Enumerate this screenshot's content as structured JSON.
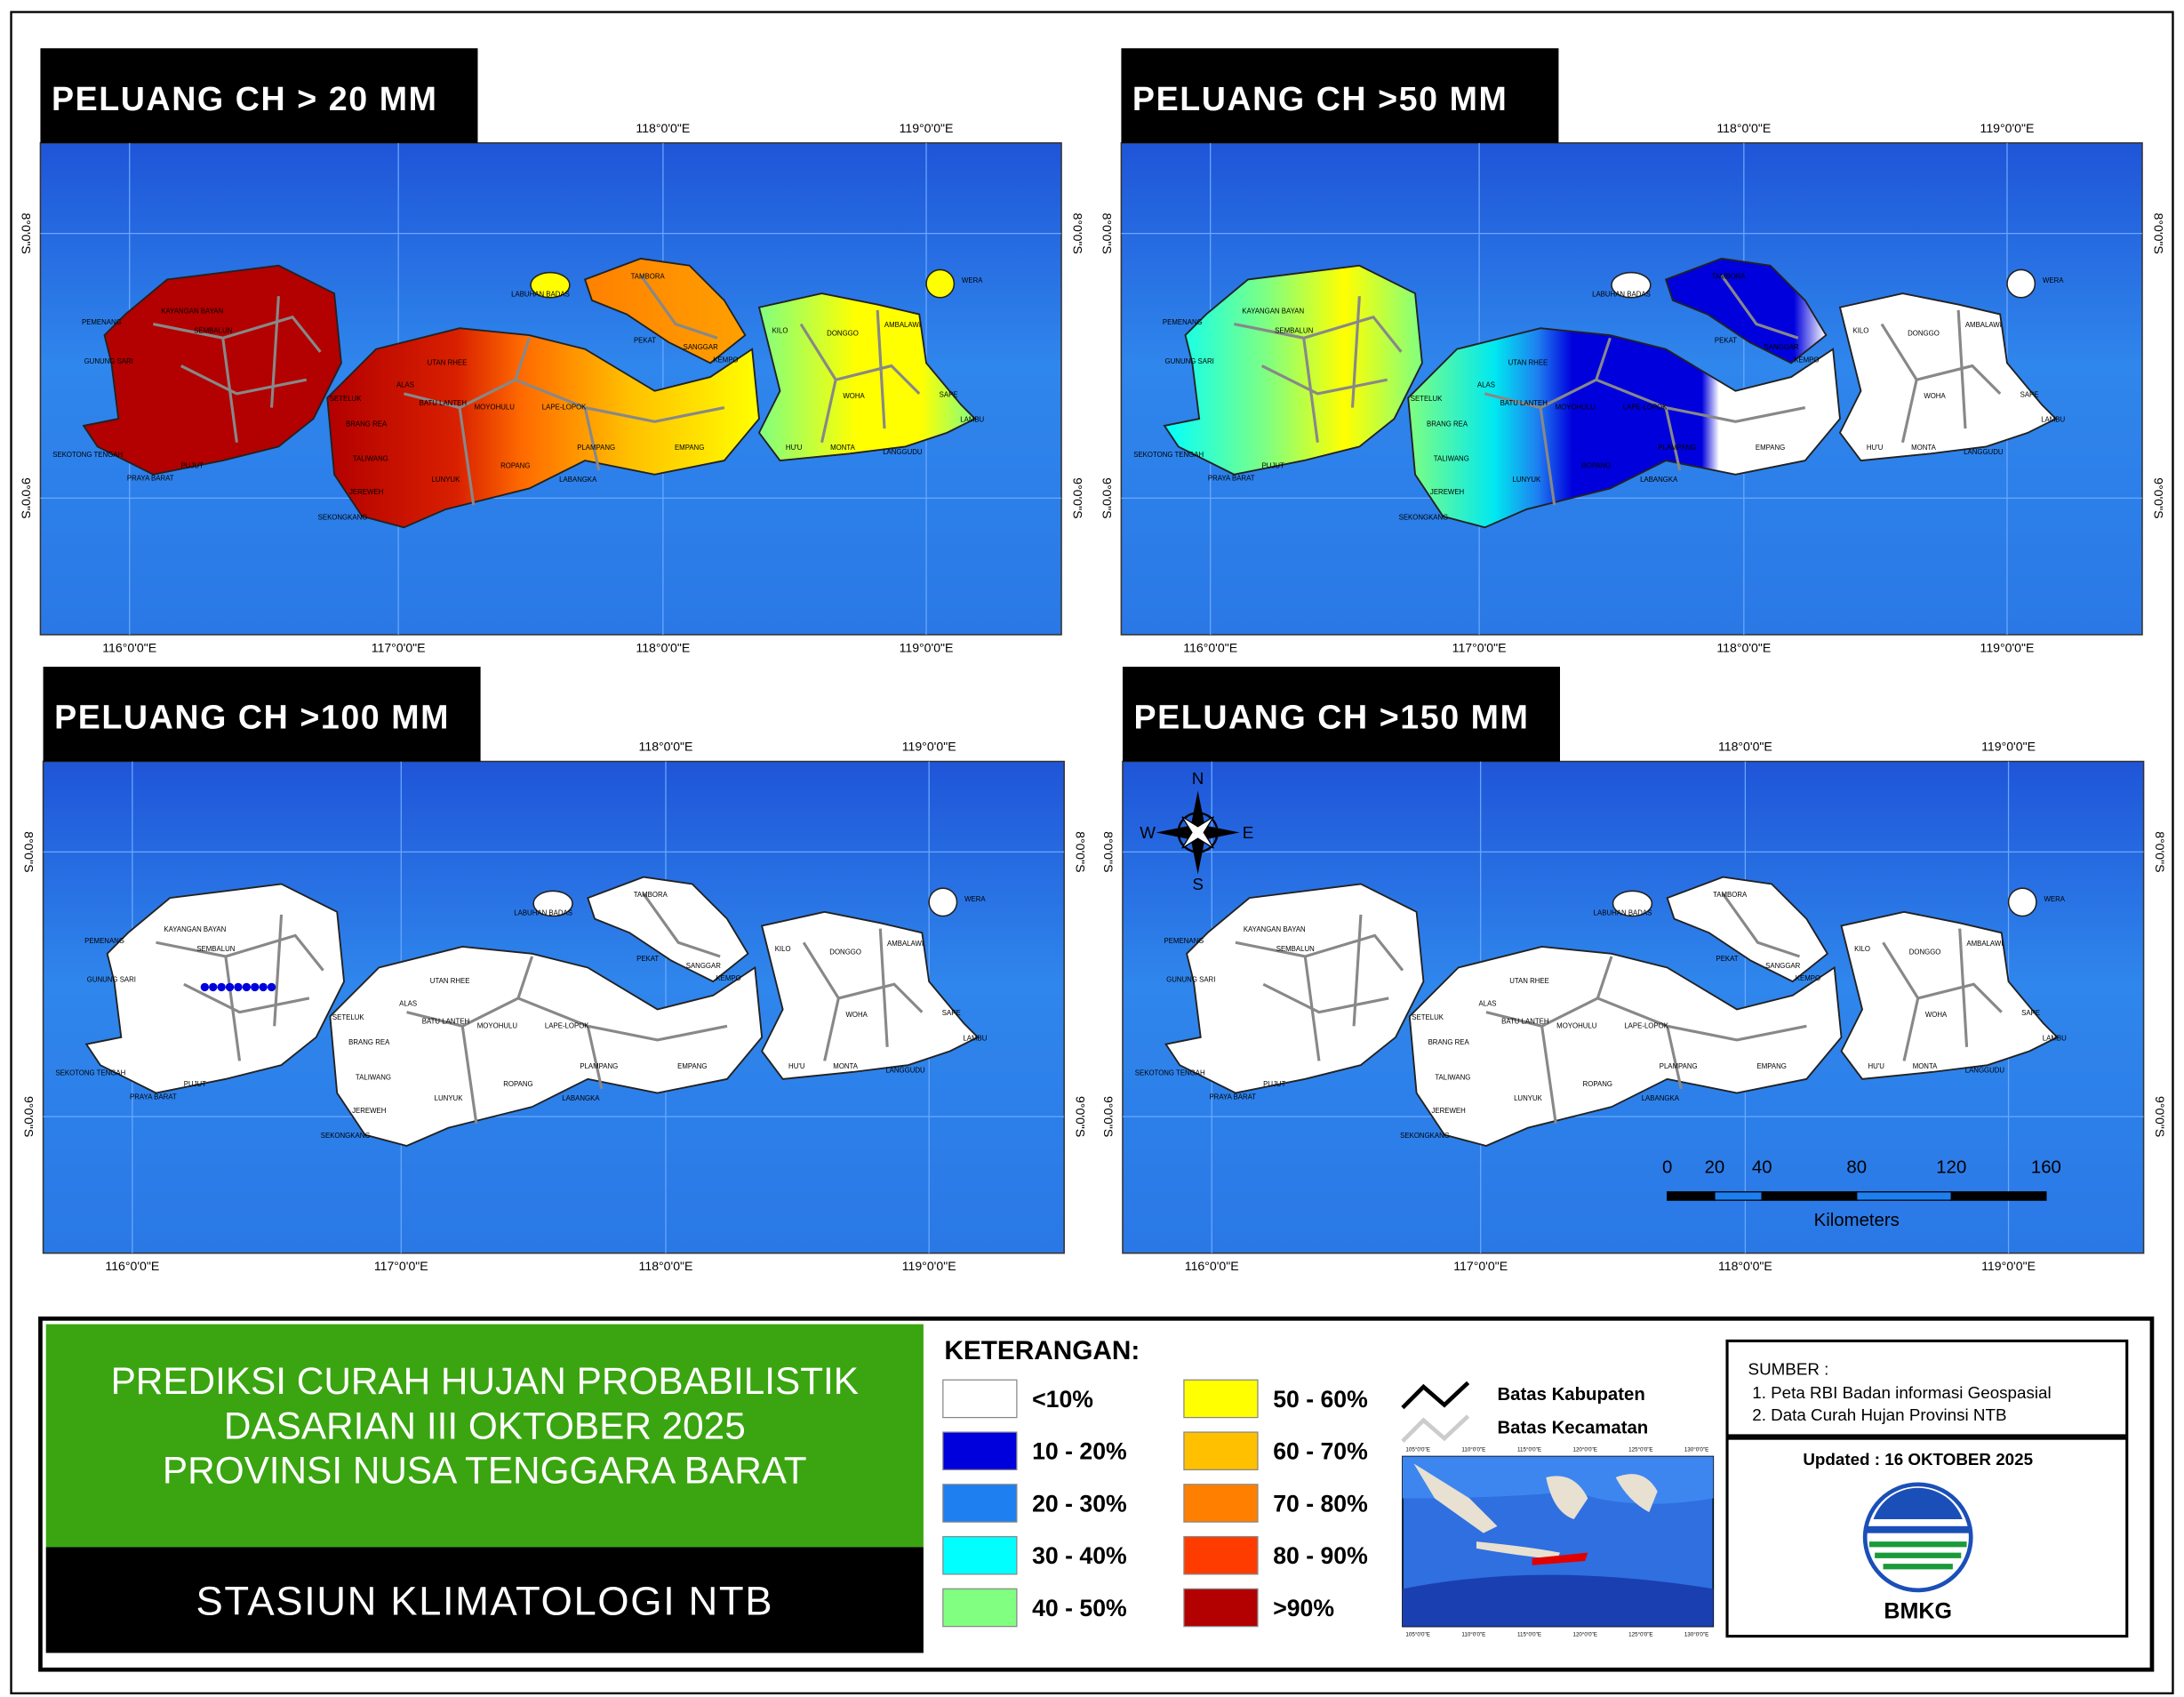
{
  "panels": [
    {
      "title": "PELUANG CH > 20 MM"
    },
    {
      "title": "PELUANG CH >50 MM"
    },
    {
      "title": "PELUANG CH >100 MM"
    },
    {
      "title": "PELUANG CH >150 MM"
    }
  ],
  "map_axis": {
    "top_labels": [
      "118°0'0\"E",
      "119°0'0\"E"
    ],
    "bottom_labels": [
      "116°0'0\"E",
      "117°0'0\"E",
      "118°0'0\"E",
      "119°0'0\"E"
    ],
    "side_labels": [
      "8°0'0\"S",
      "9°0'0\"S"
    ]
  },
  "districts": [
    "LABUHAN BADAS",
    "TAMBORA",
    "PEKAT",
    "SANGGAR",
    "KILO",
    "DONGGO",
    "WERA",
    "AMBALAWI",
    "SAPE",
    "LAMBU",
    "LANGGUDU",
    "MONTA",
    "WOHA",
    "HU'U",
    "EMPANG",
    "PLAMPANG",
    "LABANGKA",
    "KEMPO",
    "ROPANG",
    "LUNYUK",
    "MOYOHULU",
    "LAPE-LOPOK",
    "UTAN RHEE",
    "BATU LANTEH",
    "ALAS",
    "SETELUK",
    "BRANG REA",
    "TALIWANG",
    "JEREWEH",
    "SEKONGKANG",
    "SEMBALUN",
    "KAYANGAN BAYAN",
    "PUJUT",
    "PRAYA BARAT",
    "SEKOTONG TENGAH",
    "GUNUNG SARI",
    "PEMENANG"
  ],
  "compass": {
    "n": "N",
    "s": "S",
    "e": "E",
    "w": "W"
  },
  "scale_bar": {
    "ticks": [
      0,
      20,
      40,
      80,
      120,
      160
    ],
    "unit": "Kilometers"
  },
  "title_block": {
    "lines": [
      "PREDIKSI CURAH HUJAN PROBABILISTIK",
      "DASARIAN  III OKTOBER 2025",
      "PROVINSI NUSA TENGGARA BARAT"
    ],
    "station": "STASIUN KLIMATOLOGI NTB"
  },
  "legend": {
    "title": "KETERANGAN:",
    "classes": [
      {
        "label": "<10%",
        "color": "#ffffff"
      },
      {
        "label": "10 - 20%",
        "color": "#0000dd"
      },
      {
        "label": "20 - 30%",
        "color": "#1e7ff0"
      },
      {
        "label": "30 - 40%",
        "color": "#00ffff"
      },
      {
        "label": "40 - 50%",
        "color": "#80ff80"
      },
      {
        "label": "50 - 60%",
        "color": "#ffff00"
      },
      {
        "label": "60 - 70%",
        "color": "#ffc000"
      },
      {
        "label": "70 - 80%",
        "color": "#ff8000"
      },
      {
        "label": "80 - 90%",
        "color": "#ff3c00"
      },
      {
        "label": ">90%",
        "color": "#b30000"
      }
    ],
    "lines": [
      "Batas Kabupaten",
      "Batas Kecamatan"
    ]
  },
  "inset": {
    "x_labels": [
      "105°0'0\"E",
      "110°0'0\"E",
      "115°0'0\"E",
      "120°0'0\"E",
      "125°0'0\"E",
      "130°0'0\"E"
    ]
  },
  "source": {
    "title": "SUMBER :",
    "items": [
      "1. Peta RBI Badan informasi Geospasial",
      "2. Data Curah Hujan Provinsi NTB"
    ]
  },
  "updated": "Updated : 16 OKTOBER 2025",
  "logo_text": "BMKG"
}
